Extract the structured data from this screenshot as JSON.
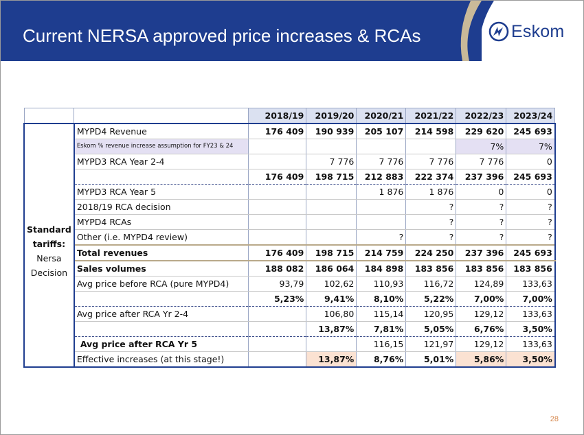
{
  "slide": {
    "title": "Current NERSA approved price increases & RCAs",
    "logo_text": "Eskom",
    "page_number": "28"
  },
  "table": {
    "side_label": [
      "Standard",
      "tariffs:",
      "Nersa",
      "Decision"
    ],
    "years": [
      "2018/19",
      "2019/20",
      "2020/21",
      "2021/22",
      "2022/23",
      "2023/24"
    ],
    "rows": [
      {
        "label": "MYPD4 Revenue",
        "values": [
          "176 409",
          "190 939",
          "205 107",
          "214 598",
          "229 620",
          "245 693"
        ]
      },
      {
        "label": "Eskom % revenue increase assumption for FY23 & 24",
        "values": [
          "",
          "",
          "",
          "",
          "7%",
          "7%"
        ]
      },
      {
        "label": "MYPD3 RCA Year 2-4",
        "values": [
          "",
          "7 776",
          "7 776",
          "7 776",
          "7 776",
          "0"
        ]
      },
      {
        "label": "",
        "values": [
          "176 409",
          "198 715",
          "212 883",
          "222 374",
          "237 396",
          "245 693"
        ]
      },
      {
        "label": "MYPD3 RCA Year 5",
        "values": [
          "",
          "",
          "1 876",
          "1 876",
          "0",
          "0"
        ]
      },
      {
        "label": "2018/19 RCA decision",
        "values": [
          "",
          "",
          "",
          "?",
          "?",
          "?"
        ]
      },
      {
        "label": "MYPD4 RCAs",
        "values": [
          "",
          "",
          "",
          "?",
          "?",
          "?"
        ]
      },
      {
        "label": "Other (i.e. MYPD4 review)",
        "values": [
          "",
          "",
          "?",
          "?",
          "?",
          "?"
        ]
      },
      {
        "label": "Total revenues",
        "values": [
          "176 409",
          "198 715",
          "214 759",
          "224 250",
          "237 396",
          "245 693"
        ]
      },
      {
        "label": "Sales volumes",
        "values": [
          "188 082",
          "186 064",
          "184 898",
          "183 856",
          "183 856",
          "183 856"
        ]
      },
      {
        "label": "Avg price before RCA (pure MYPD4)",
        "values": [
          "93,79",
          "102,62",
          "110,93",
          "116,72",
          "124,89",
          "133,63"
        ]
      },
      {
        "label": "",
        "values": [
          "5,23%",
          "9,41%",
          "8,10%",
          "5,22%",
          "7,00%",
          "7,00%"
        ]
      },
      {
        "label": "Avg price after RCA Yr 2-4",
        "values": [
          "",
          "106,80",
          "115,14",
          "120,95",
          "129,12",
          "133,63"
        ]
      },
      {
        "label": "",
        "values": [
          "",
          "13,87%",
          "7,81%",
          "5,05%",
          "6,76%",
          "3,50%"
        ]
      },
      {
        "label": "Avg price after RCA Yr 5",
        "values": [
          "",
          "",
          "116,15",
          "121,97",
          "129,12",
          "133,63"
        ]
      },
      {
        "label": "Effective increases (at this stage!)",
        "values": [
          "",
          "13,87%",
          "8,76%",
          "5,01%",
          "5,86%",
          "3,50%"
        ]
      }
    ]
  },
  "colors": {
    "brand_blue": "#1e3d8f",
    "header_cell": "#dbe1f1",
    "lilac_cell": "#e4e0f3",
    "peach_cell": "#fbe2d2"
  }
}
